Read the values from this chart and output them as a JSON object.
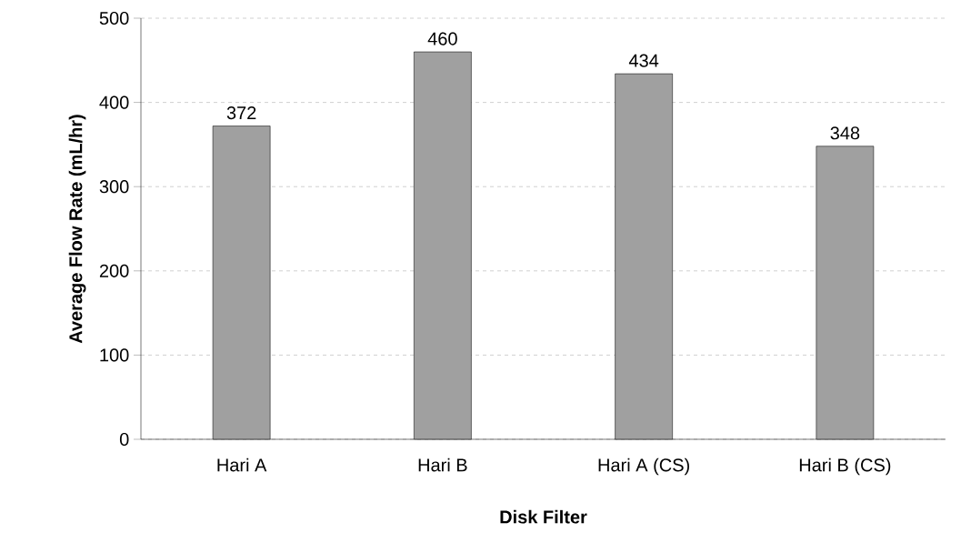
{
  "chart_data": {
    "type": "bar",
    "xlabel": "Disk Filter",
    "ylabel": "Average Flow Rate (mL/hr)",
    "categories": [
      "Hari A",
      "Hari B",
      "Hari A (CS)",
      "Hari B (CS)"
    ],
    "values": [
      372,
      460,
      434,
      348
    ],
    "color": "#a0a0a0",
    "ylim": [
      0,
      500
    ],
    "yticks": [
      0,
      100,
      200,
      300,
      400,
      500
    ],
    "grid": "y",
    "data_labels": true
  }
}
